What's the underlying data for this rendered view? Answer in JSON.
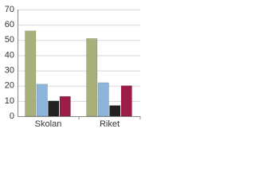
{
  "chart_data": {
    "type": "bar",
    "categories": [
      "Skolan",
      "Riket"
    ],
    "series": [
      {
        "color": "#a9b07c",
        "values": [
          56,
          51
        ]
      },
      {
        "color": "#8db4da",
        "values": [
          21,
          22
        ]
      },
      {
        "color": "#222222",
        "values": [
          10,
          7
        ]
      },
      {
        "color": "#9c1c4a",
        "values": [
          13,
          20
        ]
      }
    ],
    "ylim": [
      0,
      70
    ],
    "yticks": [
      0,
      10,
      20,
      30,
      40,
      50,
      60,
      70
    ],
    "grid": true
  }
}
